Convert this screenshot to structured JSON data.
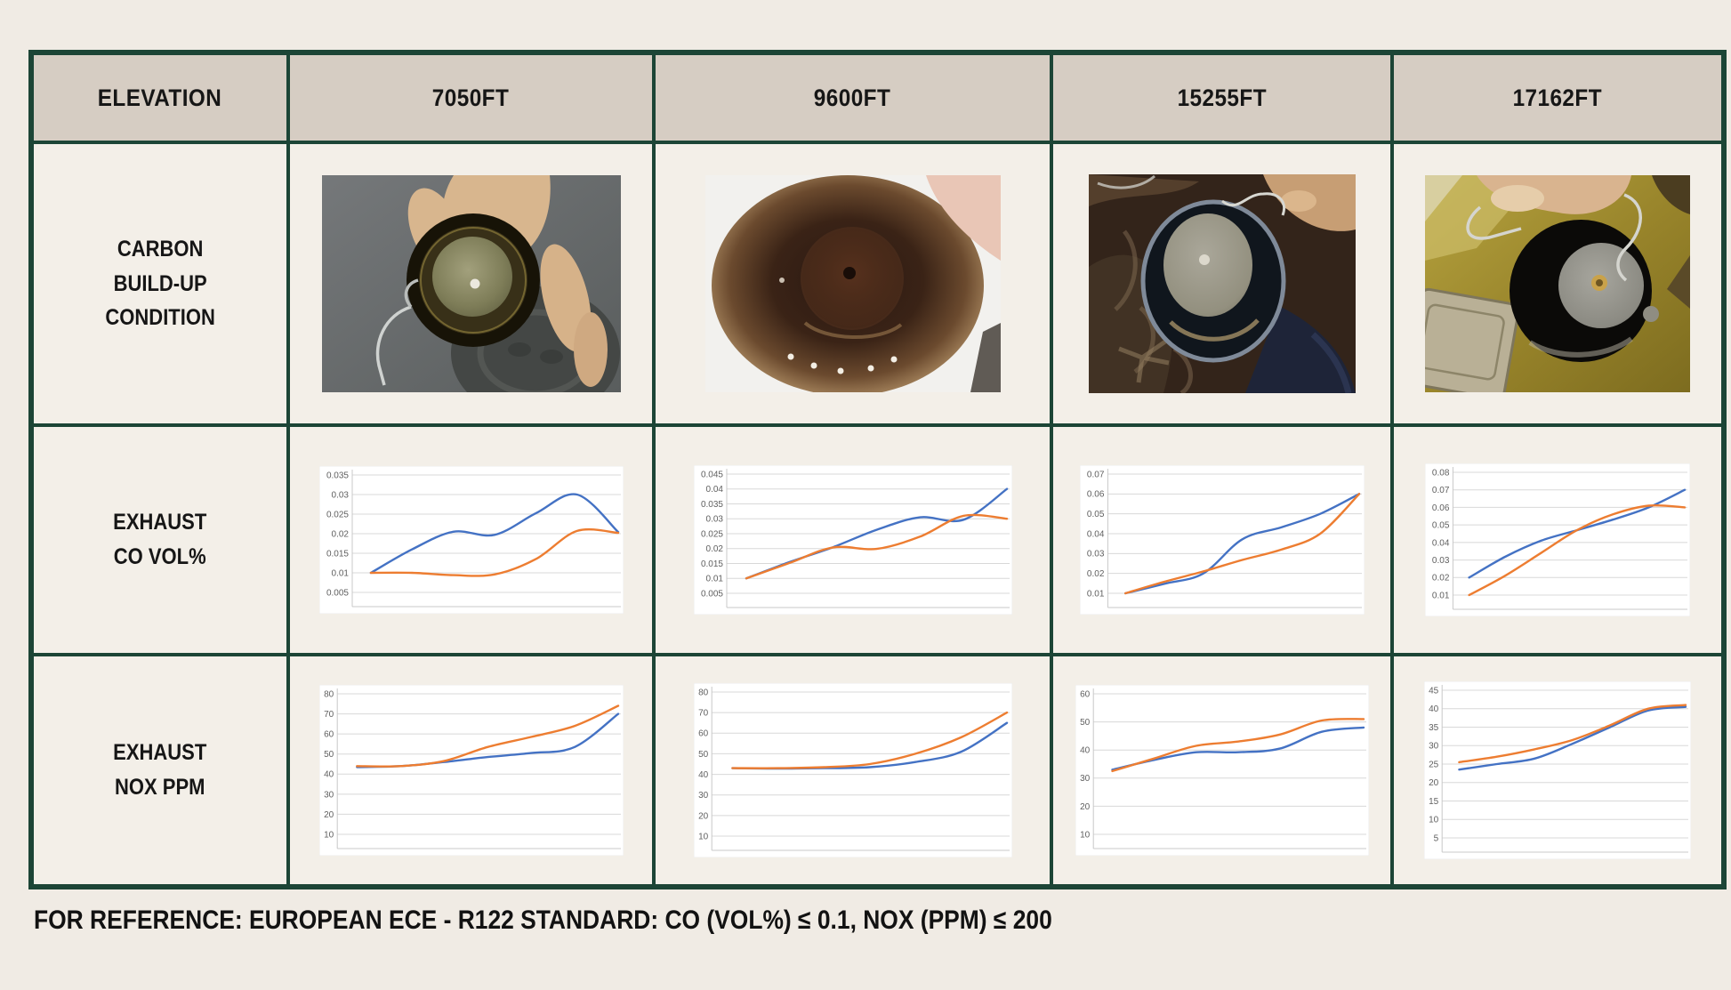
{
  "colors": {
    "border_green": "#1c4536",
    "header_bg": "#d6cdc3",
    "cell_bg": "#f3efe8",
    "page_bg": "#f0ebe4",
    "chart_bg": "#ffffff",
    "grid_line": "#d8d8d8",
    "axis_line": "#c9c9c9",
    "tick_text": "#5f5f5f",
    "line_blue": "#4472c4",
    "line_orange": "#ed7d31"
  },
  "table": {
    "header": {
      "row_label": "ELEVATION",
      "columns": [
        "7050FT",
        "9600FT",
        "15255FT",
        "17162FT"
      ]
    },
    "row_labels": {
      "carbon": [
        "CARBON",
        "BUILD-UP",
        "CONDITION"
      ],
      "co": [
        "EXHAUST",
        "CO VOL%"
      ],
      "nox": [
        "EXHAUST",
        "NOX PPM"
      ]
    }
  },
  "photos": [
    {
      "column": "7050FT",
      "description": "Hand holding metal burner cup with light grey-green catalytic mesh and little carbon build-up over grey pavement with manhole cover"
    },
    {
      "column": "9600FT",
      "description": "Inside view of burner tube, tan rim darkening to heavy brown carbon soot toward the centre disc"
    },
    {
      "column": "15255FT",
      "description": "Metal burner cup with grey mesh disc held by wire handle over dark brown patterned carpet"
    },
    {
      "column": "17162FT",
      "description": "Blackened burner cup with grey disc held over olive-yellow carpet next to a steel stove box"
    }
  ],
  "footer_note": "FOR REFERENCE: EUROPEAN ECE - R122 STANDARD: CO (VOL%) ≤ 0.1, NOX (PPM) ≤ 200",
  "chart_data": [
    {
      "type": "line",
      "row": "EXHAUST CO VOL%",
      "elevation": "7050FT",
      "y_ticks": [
        "0.035",
        "0.03",
        "0.025",
        "0.02",
        "0.015",
        "0.01",
        "0.005"
      ],
      "x_ticks": "none",
      "legend": "none",
      "grid": true,
      "series": [
        {
          "name": "blue",
          "color": "#4472c4",
          "values": [
            0.01,
            0.016,
            0.0205,
            0.0197,
            0.0252,
            0.03,
            0.0204
          ]
        },
        {
          "name": "orange",
          "color": "#ed7d31",
          "values": [
            0.01,
            0.01,
            0.0094,
            0.0096,
            0.0135,
            0.0207,
            0.0202
          ]
        }
      ]
    },
    {
      "type": "line",
      "row": "EXHAUST CO VOL%",
      "elevation": "9600FT",
      "y_ticks": [
        "0.045",
        "0.04",
        "0.035",
        "0.03",
        "0.025",
        "0.02",
        "0.015",
        "0.01",
        "0.005"
      ],
      "x_ticks": "none",
      "legend": "none",
      "grid": true,
      "series": [
        {
          "name": "blue",
          "color": "#4472c4",
          "values": [
            0.01,
            0.0155,
            0.0205,
            0.0263,
            0.0305,
            0.0297,
            0.04
          ]
        },
        {
          "name": "orange",
          "color": "#ed7d31",
          "values": [
            0.01,
            0.0152,
            0.0204,
            0.0199,
            0.024,
            0.031,
            0.03
          ]
        }
      ]
    },
    {
      "type": "line",
      "row": "EXHAUST CO VOL%",
      "elevation": "15255FT",
      "y_ticks": [
        "0.07",
        "0.06",
        "0.05",
        "0.04",
        "0.03",
        "0.02",
        "0.01"
      ],
      "x_ticks": "none",
      "legend": "none",
      "grid": true,
      "series": [
        {
          "name": "blue",
          "color": "#4472c4",
          "values": [
            0.01,
            0.0148,
            0.02,
            0.0372,
            0.0432,
            0.05,
            0.06
          ]
        },
        {
          "name": "orange",
          "color": "#ed7d31",
          "values": [
            0.01,
            0.0158,
            0.021,
            0.0268,
            0.032,
            0.04,
            0.06
          ]
        }
      ]
    },
    {
      "type": "line",
      "row": "EXHAUST CO VOL%",
      "elevation": "17162FT",
      "y_ticks": [
        "0.08",
        "0.07",
        "0.06",
        "0.05",
        "0.04",
        "0.03",
        "0.02",
        "0.01"
      ],
      "x_ticks": "none",
      "legend": "none",
      "grid": true,
      "series": [
        {
          "name": "blue",
          "color": "#4472c4",
          "values": [
            0.02,
            0.0318,
            0.041,
            0.047,
            0.053,
            0.06,
            0.07
          ]
        },
        {
          "name": "orange",
          "color": "#ed7d31",
          "values": [
            0.01,
            0.021,
            0.034,
            0.047,
            0.056,
            0.061,
            0.06
          ]
        }
      ]
    },
    {
      "type": "line",
      "row": "EXHAUST NOX PPM",
      "elevation": "7050FT",
      "y_ticks": [
        "80",
        "70",
        "60",
        "50",
        "40",
        "30",
        "20",
        "10"
      ],
      "x_ticks": "none",
      "legend": "none",
      "grid": true,
      "series": [
        {
          "name": "blue",
          "color": "#4472c4",
          "values": [
            43.5,
            44,
            46,
            48.5,
            50.5,
            53.5,
            70
          ]
        },
        {
          "name": "orange",
          "color": "#ed7d31",
          "values": [
            44,
            44,
            46.5,
            53.5,
            58.5,
            64,
            74
          ]
        }
      ]
    },
    {
      "type": "line",
      "row": "EXHAUST NOX PPM",
      "elevation": "9600FT",
      "y_ticks": [
        "80",
        "70",
        "60",
        "50",
        "40",
        "30",
        "20",
        "10"
      ],
      "x_ticks": "none",
      "legend": "none",
      "grid": true,
      "series": [
        {
          "name": "blue",
          "color": "#4472c4",
          "values": [
            43,
            42.8,
            43,
            43.5,
            46,
            51,
            65
          ]
        },
        {
          "name": "orange",
          "color": "#ed7d31",
          "values": [
            43,
            43,
            43.5,
            45,
            50,
            58,
            70
          ]
        }
      ]
    },
    {
      "type": "line",
      "row": "EXHAUST NOX PPM",
      "elevation": "15255FT",
      "y_ticks": [
        "60",
        "50",
        "40",
        "30",
        "20",
        "10"
      ],
      "x_ticks": "none",
      "legend": "none",
      "grid": true,
      "series": [
        {
          "name": "blue",
          "color": "#4472c4",
          "values": [
            33,
            36.5,
            39.2,
            39.2,
            40.5,
            46.5,
            48
          ]
        },
        {
          "name": "orange",
          "color": "#ed7d31",
          "values": [
            32.5,
            37,
            41.5,
            43,
            45.5,
            50.5,
            51
          ]
        }
      ]
    },
    {
      "type": "line",
      "row": "EXHAUST NOX PPM",
      "elevation": "17162FT",
      "y_ticks": [
        "45",
        "40",
        "35",
        "30",
        "25",
        "20",
        "15",
        "10",
        "5"
      ],
      "x_ticks": "none",
      "legend": "none",
      "grid": true,
      "series": [
        {
          "name": "blue",
          "color": "#4472c4",
          "values": [
            23.5,
            25,
            26.5,
            30.5,
            35,
            39.5,
            40.5
          ]
        },
        {
          "name": "orange",
          "color": "#ed7d31",
          "values": [
            25.5,
            27,
            29,
            31.5,
            35.5,
            40,
            41
          ]
        }
      ]
    }
  ]
}
